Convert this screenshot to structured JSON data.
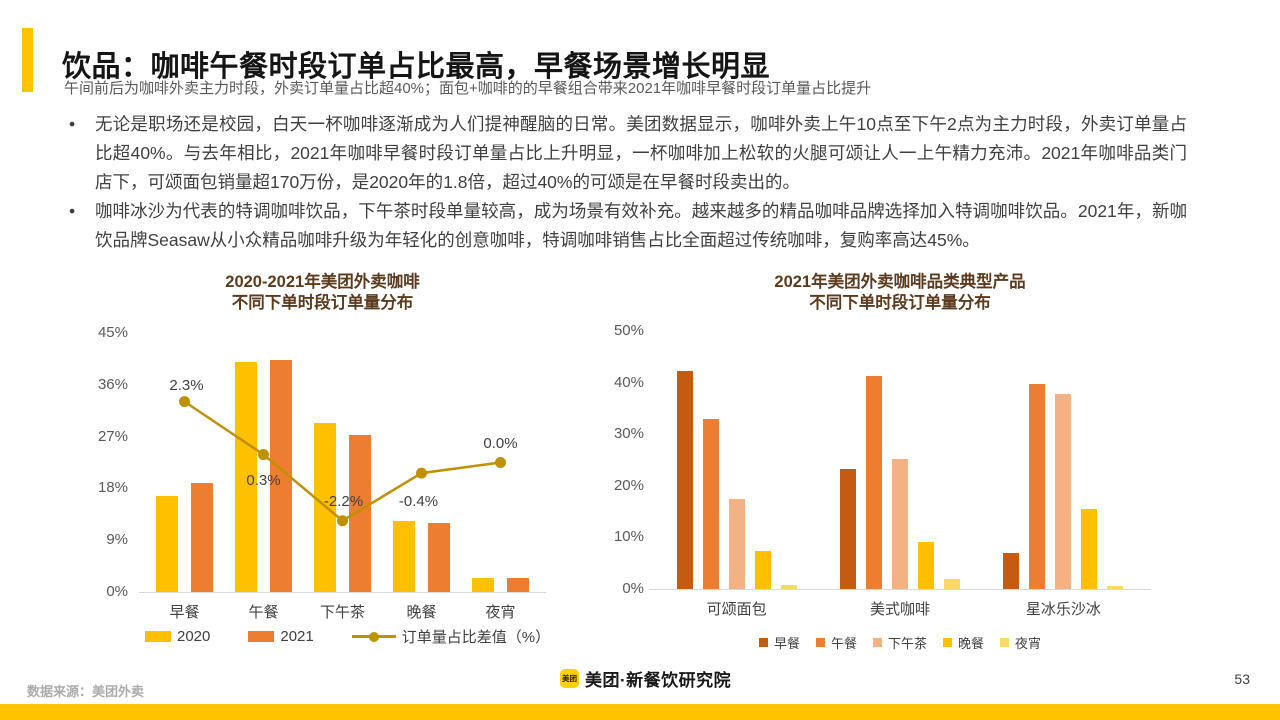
{
  "slide": {
    "title": "饮品：咖啡午餐时段订单占比最高，早餐场景增长明显",
    "subtitle": "午间前后为咖啡外卖主力时段，外卖订单量占比超40%；面包+咖啡的的早餐组合带来2021年咖啡早餐时段订单量占比提升",
    "bullets": [
      "无论是职场还是校园，白天一杯咖啡逐渐成为人们提神醒脑的日常。美团数据显示，咖啡外卖上午10点至下午2点为主力时段，外卖订单量占比超40%。与去年相比，2021年咖啡早餐时段订单量占比上升明显，一杯咖啡加上松软的火腿可颂让人一上午精力充沛。2021年咖啡品类门店下，可颂面包销量超170万份，是2020年的1.8倍，超过40%的可颂是在早餐时段卖出的。",
      "咖啡冰沙为代表的特调咖啡饮品，下午茶时段单量较高，成为场景有效补充。越来越多的精品咖啡品牌选择加入特调咖啡饮品。2021年，新咖饮品牌Seasaw从小众精品咖啡升级为年轻化的创意咖啡，特调咖啡销售占比全面超过传统咖啡，复购率高达45%。"
    ],
    "footer": {
      "source": "数据来源：美团外卖",
      "logo_badge": "美团",
      "logo_text": "美团·新餐饮研究院",
      "page_number": "53"
    },
    "colors": {
      "accent_yellow": "#FFC300",
      "chart_title_brown": "#5C3A1D",
      "axis_label_gray": "#595959",
      "text_gray": "#3F3F3F"
    }
  },
  "chart_data": [
    {
      "type": "bar",
      "title_line1": "2020-2021年美团外卖咖啡",
      "title_line2": "不同下单时段订单量分布",
      "categories": [
        "早餐",
        "午餐",
        "下午茶",
        "晚餐",
        "夜宵"
      ],
      "series": [
        {
          "name": "2020",
          "color": "#FFC000",
          "values": [
            16.7,
            40.0,
            29.4,
            12.4,
            2.5
          ]
        },
        {
          "name": "2021",
          "color": "#ED7D31",
          "values": [
            19.0,
            40.3,
            27.2,
            12.0,
            2.5
          ]
        }
      ],
      "line_series": {
        "name": "订单量占比差值（%）",
        "color": "#BF9000",
        "values": [
          2.3,
          0.3,
          -2.2,
          -0.4,
          0.0
        ],
        "labels": [
          "2.3%",
          "0.3%",
          "-2.2%",
          "-0.4%",
          "0.0%"
        ]
      },
      "ylim": [
        0,
        45
      ],
      "yticks": [
        45,
        36,
        27,
        18,
        9,
        0
      ],
      "ytick_suffix": "%",
      "grid": false,
      "legend_position": "bottom"
    },
    {
      "type": "bar",
      "title_line1": "2021年美团外卖咖啡品类典型产品",
      "title_line2": "不同下单时段订单量分布",
      "categories": [
        "可颂面包",
        "美式咖啡",
        "星冰乐沙冰"
      ],
      "series": [
        {
          "name": "早餐",
          "color": "#C55A11",
          "values": [
            42.3,
            23.3,
            6.9
          ]
        },
        {
          "name": "午餐",
          "color": "#ED7D31",
          "values": [
            32.9,
            41.3,
            39.8
          ]
        },
        {
          "name": "下午茶",
          "color": "#F4B183",
          "values": [
            17.4,
            25.2,
            37.7
          ]
        },
        {
          "name": "晚餐",
          "color": "#FFC000",
          "values": [
            7.3,
            9.2,
            15.5
          ]
        },
        {
          "name": "夜宵",
          "color": "#FFD966",
          "values": [
            0.8,
            2.0,
            0.6
          ]
        }
      ],
      "ylim": [
        0,
        50
      ],
      "yticks": [
        50,
        40,
        30,
        20,
        10,
        0
      ],
      "ytick_suffix": "%",
      "grid": false,
      "legend_position": "bottom"
    }
  ]
}
